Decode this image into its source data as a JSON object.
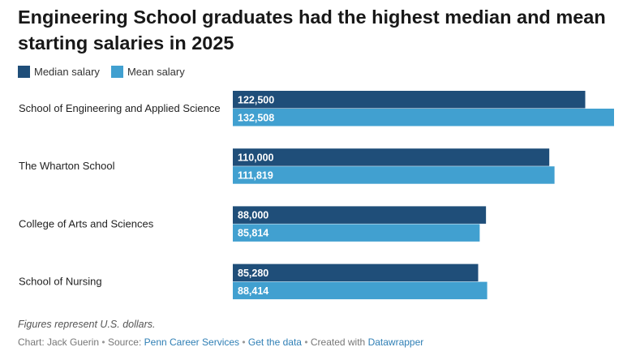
{
  "title": "Engineering School graduates had the highest median and mean starting salaries in 2025",
  "legend": [
    {
      "label": "Median salary",
      "color": "#1f4e79"
    },
    {
      "label": "Mean salary",
      "color": "#41a0d0"
    }
  ],
  "chart_data": {
    "type": "bar",
    "orientation": "horizontal",
    "categories": [
      "School of Engineering and Applied Science",
      "The Wharton School",
      "College of Arts and Sciences",
      "School of Nursing"
    ],
    "series": [
      {
        "name": "Median salary",
        "color": "#1f4e79",
        "values": [
          122500,
          110000,
          88000,
          85280
        ]
      },
      {
        "name": "Mean salary",
        "color": "#41a0d0",
        "values": [
          132508,
          111819,
          85814,
          88414
        ]
      }
    ],
    "value_labels": {
      "Median salary": [
        "122,500",
        "110,000",
        "88,000",
        "85,280"
      ],
      "Mean salary": [
        "132,508",
        "111,819",
        "85,814",
        "88,414"
      ]
    },
    "grid": false
  },
  "notes": "Figures represent U.S. dollars.",
  "credits": {
    "author": "Chart: Jack Guerin",
    "source_prefix": "Source:",
    "source": "Penn Career Services",
    "get_data": "Get the data",
    "created_with_prefix": "Created with",
    "tool": "Datawrapper",
    "separator": "•"
  }
}
